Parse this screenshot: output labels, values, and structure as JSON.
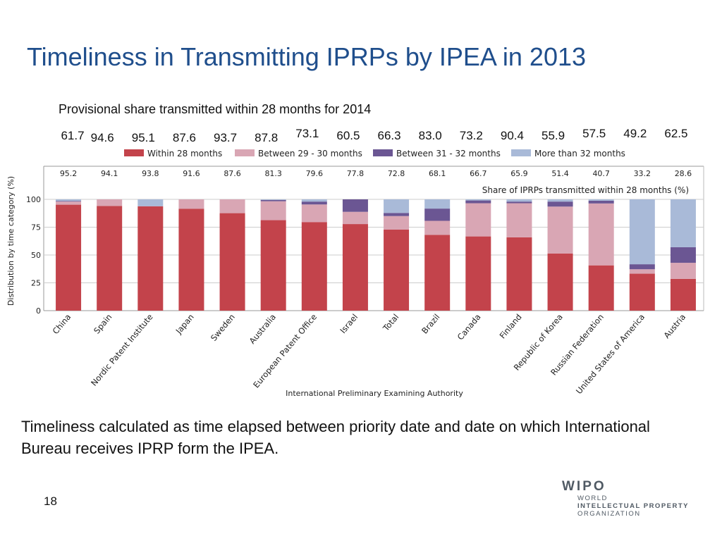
{
  "slide": {
    "title": "Timeliness in Transmitting IPRPs by IPEA in 2013",
    "subtitle": "Provisional share transmitted within 28 months for 2014",
    "provisional_values": [
      "61.7",
      "94.6",
      "95.1",
      "87.6",
      "93.7",
      "87.8",
      "73.1",
      "60.5",
      "66.3",
      "83.0",
      "73.2",
      "90.4",
      "55.9",
      "57.5",
      "49.2",
      "62.5"
    ],
    "footnote": "Timeliness calculated as time elapsed between priority date and date on which International Bureau receives IPRP form the IPEA.",
    "page_number": "18",
    "logo": {
      "mark": "WIPO",
      "line1": "WORLD",
      "line2": "INTELLECTUAL PROPERTY",
      "line3": "ORGANIZATION"
    }
  },
  "chart_data": {
    "type": "bar",
    "stacked": true,
    "title": "",
    "xlabel": "International Preliminary Examining Authority",
    "ylabel": "Distribution by time category (%)",
    "ylim": [
      0,
      100
    ],
    "yticks": [
      0,
      25,
      50,
      75,
      100
    ],
    "categories": [
      "China",
      "Spain",
      "Nordic Patent Institute",
      "Japan",
      "Sweden",
      "Australia",
      "European Patent Office",
      "Israel",
      "Total",
      "Brazil",
      "Canada",
      "Finland",
      "Republic of Korea",
      "Russian Federation",
      "United States of America",
      "Austria"
    ],
    "share_labels": [
      "95.2",
      "94.1",
      "93.8",
      "91.6",
      "87.6",
      "81.3",
      "79.6",
      "77.8",
      "72.8",
      "68.1",
      "66.7",
      "65.9",
      "51.4",
      "40.7",
      "33.2",
      "28.6"
    ],
    "share_legend": "Share of IPRPs transmitted within 28 months (%)",
    "series": [
      {
        "name": "Within 28 months",
        "color": "#c3434b",
        "values": [
          95.2,
          94.1,
          93.8,
          91.6,
          87.6,
          81.3,
          79.6,
          77.8,
          72.8,
          68.1,
          66.7,
          65.9,
          51.4,
          40.7,
          33.2,
          28.6
        ]
      },
      {
        "name": "Between 29 - 30 months",
        "color": "#d9a6b4",
        "values": [
          2.8,
          5.9,
          0.0,
          8.4,
          12.4,
          17.0,
          15.8,
          11.0,
          12.2,
          12.6,
          29.8,
          30.6,
          42.1,
          55.6,
          4.0,
          14.4
        ]
      },
      {
        "name": "Between 31 - 32 months",
        "color": "#6b5693",
        "values": [
          0.6,
          0.0,
          0.0,
          0.0,
          0.0,
          1.2,
          2.6,
          11.2,
          2.8,
          11.0,
          2.5,
          1.5,
          4.5,
          2.5,
          4.5,
          14.0
        ]
      },
      {
        "name": "More than 32 months",
        "color": "#a9bad8",
        "values": [
          1.4,
          0.0,
          6.2,
          0.0,
          0.0,
          0.5,
          2.0,
          0.0,
          12.2,
          8.3,
          1.0,
          2.0,
          2.0,
          1.2,
          58.3,
          43.0
        ]
      }
    ]
  }
}
